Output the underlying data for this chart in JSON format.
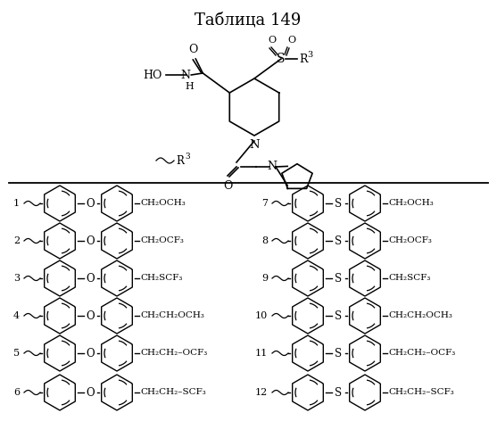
{
  "title": "Таблица 149",
  "title_fontsize": 13,
  "bg_color": "#ffffff",
  "left_entries": [
    {
      "num": "1",
      "linker": "O",
      "group": "CH₂OCH₃"
    },
    {
      "num": "2",
      "linker": "O",
      "group": "CH₂OCF₃"
    },
    {
      "num": "3",
      "linker": "O",
      "group": "CH₂SCF₃"
    },
    {
      "num": "4",
      "linker": "O",
      "group": "CH₂CH₂OCH₃"
    },
    {
      "num": "5",
      "linker": "O",
      "group": "CH₂CH₂–OCF₃"
    },
    {
      "num": "6",
      "linker": "O",
      "group": "CH₂CH₂–SCF₃"
    }
  ],
  "right_entries": [
    {
      "num": "7",
      "linker": "S",
      "group": "CH₂OCH₃"
    },
    {
      "num": "8",
      "linker": "S",
      "group": "CH₂OCF₃"
    },
    {
      "num": "9",
      "linker": "S",
      "group": "CH₂SCF₃"
    },
    {
      "num": "10",
      "linker": "S",
      "group": "CH₂CH₂OCH₃"
    },
    {
      "num": "11",
      "linker": "S",
      "group": "CH₂CH₂–OCF₃"
    },
    {
      "num": "12",
      "linker": "S",
      "group": "CH₂CH₂–SCF₃"
    }
  ]
}
